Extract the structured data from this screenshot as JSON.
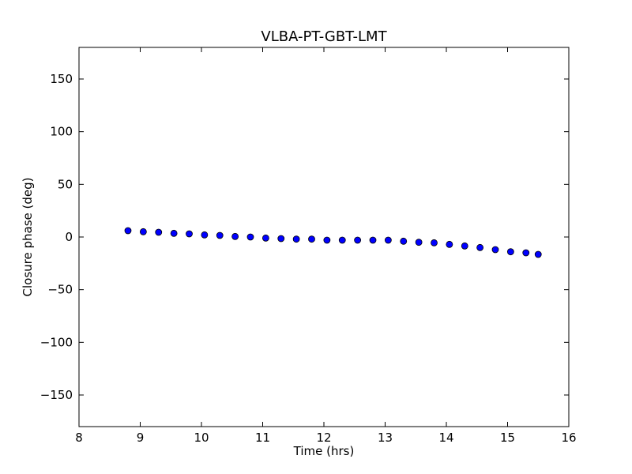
{
  "chart_data": {
    "type": "scatter",
    "title": "VLBA-PT-GBT-LMT",
    "xlabel": "Time (hrs)",
    "ylabel": "Closure phase (deg)",
    "xlim": [
      8,
      16
    ],
    "ylim": [
      -180,
      180
    ],
    "xticks": [
      8,
      9,
      10,
      11,
      12,
      13,
      14,
      15,
      16
    ],
    "xtick_labels": [
      "8",
      "9",
      "10",
      "11",
      "12",
      "13",
      "14",
      "15",
      "16"
    ],
    "yticks": [
      -150,
      -100,
      -50,
      0,
      50,
      100,
      150
    ],
    "ytick_labels": [
      "−150",
      "−100",
      "−50",
      "0",
      "50",
      "100",
      "150"
    ],
    "grid": false,
    "marker_color": "#0000ff",
    "marker_edge": "#000000",
    "series": [
      {
        "x": [
          8.8,
          9.05,
          9.3,
          9.55,
          9.8,
          10.05,
          10.3,
          10.55,
          10.8,
          11.05,
          11.3,
          11.55,
          11.8,
          12.05,
          12.3,
          12.55,
          12.8,
          13.05,
          13.3,
          13.55,
          13.8,
          14.05,
          14.3,
          14.55,
          14.8,
          15.05,
          15.3,
          15.5
        ],
        "y": [
          6,
          5,
          4.5,
          3.5,
          3,
          2,
          1.5,
          0.5,
          0,
          -1,
          -1.5,
          -2,
          -2,
          -3,
          -3,
          -3,
          -3,
          -3,
          -4,
          -5,
          -5.5,
          -7,
          -8.5,
          -10,
          -12,
          -14,
          -15,
          -16.5
        ]
      }
    ]
  }
}
